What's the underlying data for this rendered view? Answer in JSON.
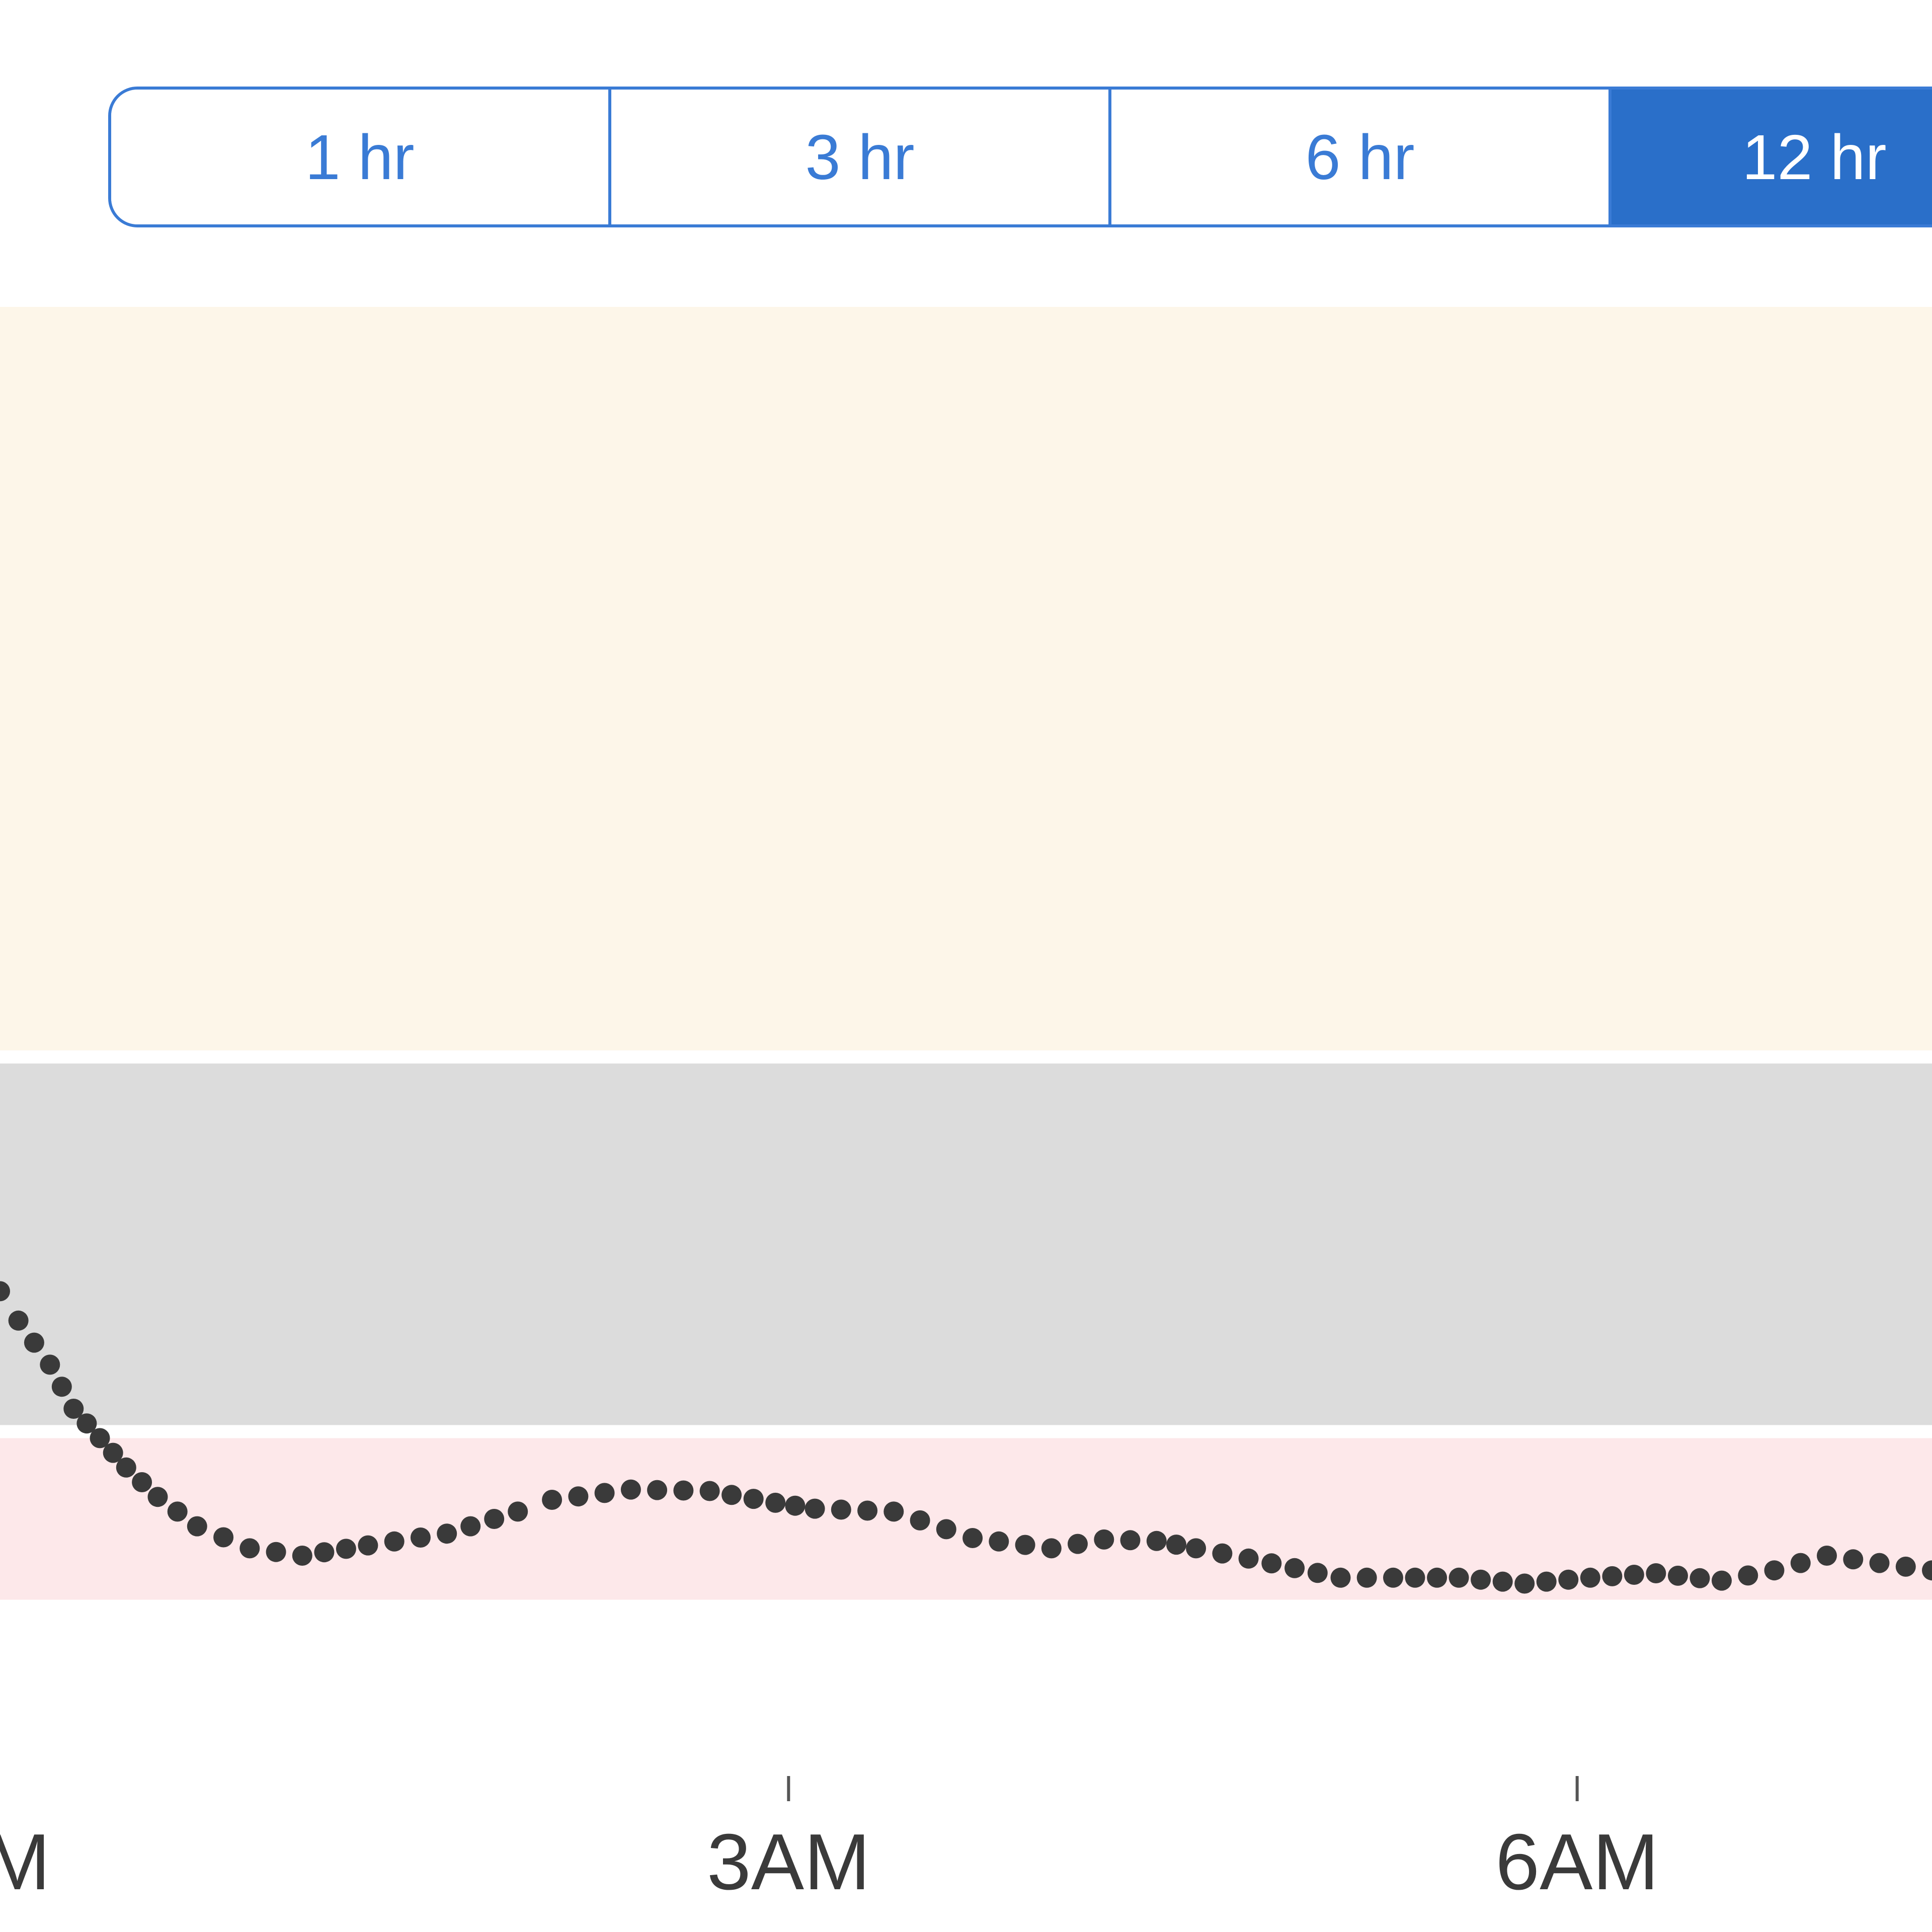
{
  "range_selector": {
    "options": [
      "1 hr",
      "3 hr",
      "6 hr",
      "12 hr"
    ],
    "selected": "12 hr"
  },
  "colors": {
    "accent": "#3a7bd5",
    "accent_active": "#2a6fc9",
    "high_band": "#fdf6e9",
    "target_band": "#dcdcdc",
    "low_band": "#fde8ea",
    "points": "#3a3a3a"
  },
  "chart_data": {
    "type": "scatter",
    "title": "",
    "xlabel": "",
    "ylabel": "",
    "x_ticks": [
      {
        "label": "M",
        "hour": 0
      },
      {
        "label": "3AM",
        "hour": 3
      },
      {
        "label": "6AM",
        "hour": 6
      }
    ],
    "xlim": [
      0,
      7.35
    ],
    "bands": [
      {
        "name": "high",
        "from": 0.0,
        "to": 0.515
      },
      {
        "name": "target",
        "from": 0.515,
        "to": 0.77
      },
      {
        "name": "low",
        "from": 0.77,
        "to": 0.88
      }
    ],
    "series": [
      {
        "hours": [
          0.0,
          0.07,
          0.19,
          0.28,
          0.38,
          0.48,
          0.6,
          0.75,
          0.95,
          1.15,
          1.4,
          1.7,
          1.97,
          2.1,
          2.4,
          2.7,
          2.95,
          3.1,
          3.4,
          3.7,
          4.0,
          4.2,
          4.4,
          4.55,
          4.75,
          5.1,
          5.3,
          5.55,
          5.8,
          6.05,
          6.3,
          6.55,
          6.75,
          6.95,
          7.15,
          7.35
        ],
        "values": [
          0.67,
          0.69,
          0.72,
          0.75,
          0.77,
          0.79,
          0.81,
          0.83,
          0.845,
          0.85,
          0.843,
          0.835,
          0.82,
          0.812,
          0.805,
          0.806,
          0.814,
          0.818,
          0.82,
          0.838,
          0.845,
          0.839,
          0.84,
          0.845,
          0.852,
          0.865,
          0.865,
          0.865,
          0.869,
          0.865,
          0.862,
          0.867,
          0.86,
          0.85,
          0.855,
          0.86
        ]
      }
    ]
  }
}
